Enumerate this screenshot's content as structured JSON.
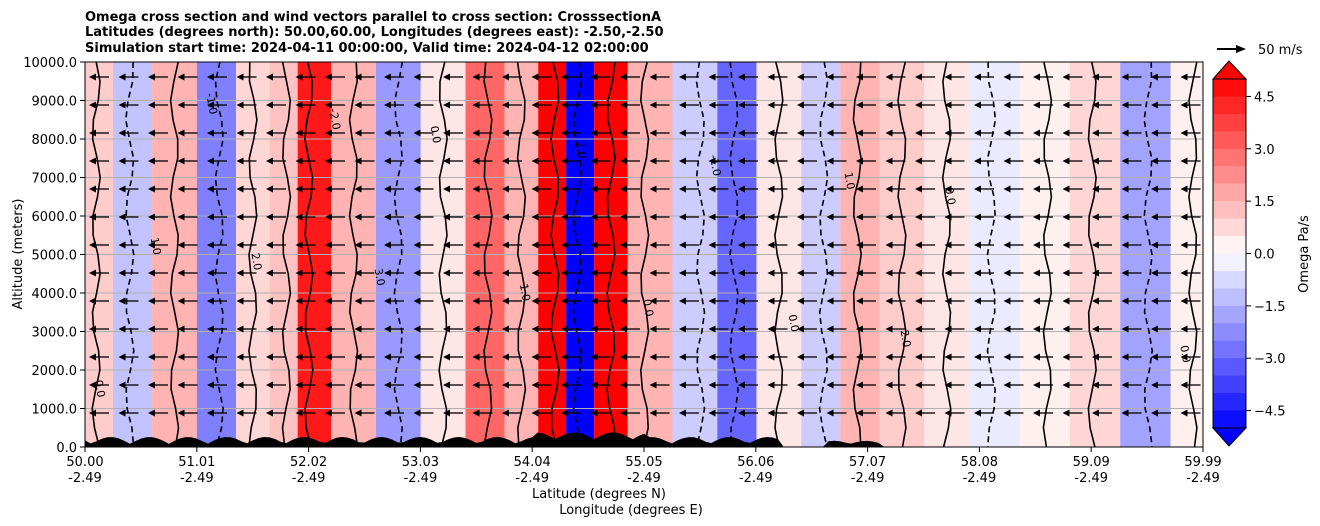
{
  "chart_data": {
    "type": "heatmap",
    "title_lines": [
      "Omega cross section and wind vectors parallel to cross section: CrosssectionA",
      "Latitudes (degrees north): 50.00,60.00, Longitudes (degrees east): -2.50,-2.50",
      "Simulation start time: 2024-04-11 00:00:00, Valid time: 2024-04-12 02:00:00"
    ],
    "xlabel_lines": [
      "Latitude (degrees N)",
      "Longitude (degrees E)"
    ],
    "ylabel": "Altitude (meters)",
    "x_ticks": [
      {
        "lat": "50.00",
        "lon": "-2.49"
      },
      {
        "lat": "51.01",
        "lon": "-2.49"
      },
      {
        "lat": "52.02",
        "lon": "-2.49"
      },
      {
        "lat": "53.03",
        "lon": "-2.49"
      },
      {
        "lat": "54.04",
        "lon": "-2.49"
      },
      {
        "lat": "55.05",
        "lon": "-2.49"
      },
      {
        "lat": "56.06",
        "lon": "-2.49"
      },
      {
        "lat": "57.07",
        "lon": "-2.49"
      },
      {
        "lat": "58.08",
        "lon": "-2.49"
      },
      {
        "lat": "59.09",
        "lon": "-2.49"
      },
      {
        "lat": "59.99",
        "lon": "-2.49"
      }
    ],
    "y_ticks": [
      "0.0",
      "1000.0",
      "2000.0",
      "3000.0",
      "4000.0",
      "5000.0",
      "6000.0",
      "7000.0",
      "8000.0",
      "9000.0",
      "10000.0"
    ],
    "xlim": [
      50.0,
      59.99
    ],
    "ylim": [
      0,
      10000
    ],
    "grid": "horizontal",
    "colorbar": {
      "label": "Omega Pa/s",
      "range": [
        -5.0,
        5.0
      ],
      "extend": "both",
      "ticks": [
        "4.5",
        "3.0",
        "1.5",
        "0.0",
        "−1.5",
        "−3.0",
        "−4.5"
      ],
      "tick_values": [
        4.5,
        3.0,
        1.5,
        0.0,
        -1.5,
        -3.0,
        -4.5
      ],
      "cmap": "bwr",
      "low_color": "#0000ff",
      "mid_color": "#ffffff",
      "high_color": "#ff0000"
    },
    "quiver_key": "50 m/s",
    "contour_labels": [
      "0.0",
      "1.0",
      "-1.0",
      "2.0",
      "-2.0",
      "3.0",
      "0.0",
      "1.0",
      "2.0",
      "0.0",
      "-1.0",
      "0.0",
      "1.0",
      "2.0",
      "0.0",
      "0.0"
    ],
    "omega_bands": [
      {
        "lat": 50.1,
        "omega": 1.0
      },
      {
        "lat": 50.4,
        "omega": -1.2
      },
      {
        "lat": 50.8,
        "omega": 1.5
      },
      {
        "lat": 51.2,
        "omega": -2.5
      },
      {
        "lat": 51.5,
        "omega": 0.8
      },
      {
        "lat": 51.8,
        "omega": 1.2
      },
      {
        "lat": 52.0,
        "omega": 4.5
      },
      {
        "lat": 52.4,
        "omega": 1.5
      },
      {
        "lat": 52.8,
        "omega": -2.0
      },
      {
        "lat": 53.2,
        "omega": 0.5
      },
      {
        "lat": 53.6,
        "omega": 3.0
      },
      {
        "lat": 53.9,
        "omega": 1.5
      },
      {
        "lat": 54.2,
        "omega": 5.0
      },
      {
        "lat": 54.4,
        "omega": -5.0
      },
      {
        "lat": 54.7,
        "omega": 5.0
      },
      {
        "lat": 55.0,
        "omega": 1.5
      },
      {
        "lat": 55.5,
        "omega": -1.0
      },
      {
        "lat": 55.8,
        "omega": -3.0
      },
      {
        "lat": 56.2,
        "omega": 0.5
      },
      {
        "lat": 56.6,
        "omega": -1.0
      },
      {
        "lat": 56.9,
        "omega": 1.5
      },
      {
        "lat": 57.3,
        "omega": 1.0
      },
      {
        "lat": 57.7,
        "omega": 0.5
      },
      {
        "lat": 58.1,
        "omega": -0.4
      },
      {
        "lat": 58.6,
        "omega": 0.3
      },
      {
        "lat": 59.0,
        "omega": 0.8
      },
      {
        "lat": 59.5,
        "omega": -1.8
      },
      {
        "lat": 59.9,
        "omega": 0.3
      }
    ]
  }
}
